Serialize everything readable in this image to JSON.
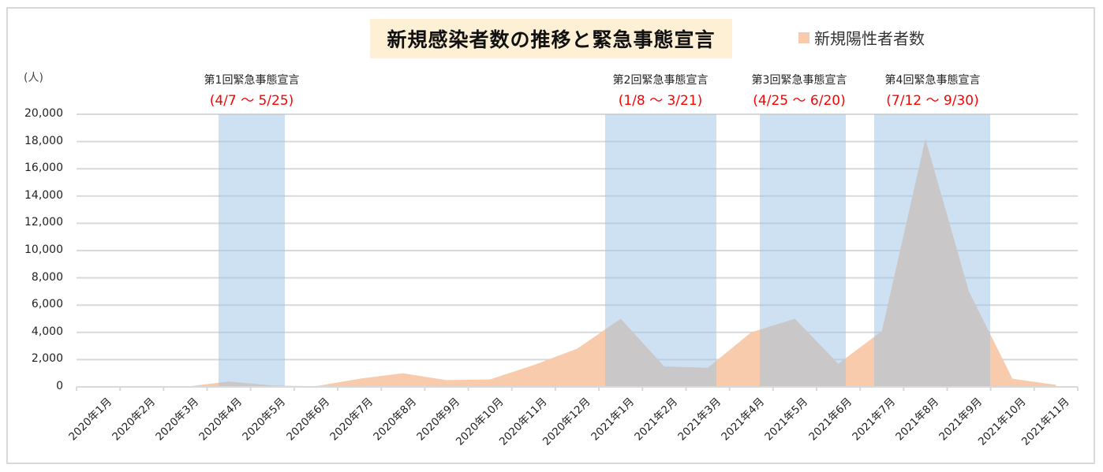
{
  "title": "新規感染者数の推移と緊急事態宣言",
  "legend": {
    "label": "新規陽性者者数",
    "color": "#f7cbab"
  },
  "y_unit": "(人)",
  "y_ticks": [
    "20,000",
    "18,000",
    "16,000",
    "14,000",
    "12,000",
    "10,000",
    "8,000",
    "6,000",
    "4,000",
    "2,000",
    "0"
  ],
  "annotations": [
    {
      "name": "第1回緊急事態宣言",
      "dates": "(4/7 〜 5/25)"
    },
    {
      "name": "第2回緊急事態宣言",
      "dates": "(1/8 〜 3/21)"
    },
    {
      "name": "第3回緊急事態宣言",
      "dates": "(4/25 〜 6/20)"
    },
    {
      "name": "第4回緊急事態宣言",
      "dates": "(7/12 〜 9/30)"
    }
  ],
  "chart_data": {
    "type": "area",
    "title": "新規感染者数の推移と緊急事態宣言",
    "xlabel": "",
    "ylabel": "(人)",
    "ylim": [
      0,
      20000
    ],
    "grid": true,
    "legend_position": "top-right",
    "categories": [
      "2020年1月",
      "2020年2月",
      "2020年3月",
      "2020年4月",
      "2020年5月",
      "2020年6月",
      "2020年7月",
      "2020年8月",
      "2020年9月",
      "2020年10月",
      "2020年11月",
      "2020年12月",
      "2021年1月",
      "2021年2月",
      "2021年3月",
      "2021年4月",
      "2021年5月",
      "2021年6月",
      "2021年7月",
      "2021年8月",
      "2021年9月",
      "2021年10月",
      "2021年11月"
    ],
    "series": [
      {
        "name": "新規陽性者者数",
        "color": "#f7cbab",
        "values": [
          0,
          0,
          10,
          400,
          100,
          50,
          600,
          1000,
          500,
          550,
          1600,
          2800,
          5000,
          1500,
          1400,
          4000,
          5000,
          1700,
          4100,
          18200,
          7000,
          600,
          150
        ]
      }
    ],
    "shaded_periods": [
      {
        "label": "第1回緊急事態宣言",
        "range": "4/7 〜 5/25",
        "color": "#bdd7ee"
      },
      {
        "label": "第2回緊急事態宣言",
        "range": "1/8 〜 3/21",
        "color": "#bdd7ee"
      },
      {
        "label": "第3回緊急事態宣言",
        "range": "4/25 〜 6/20",
        "color": "#bdd7ee"
      },
      {
        "label": "第4回緊急事態宣言",
        "range": "7/12 〜 9/30",
        "color": "#bdd7ee"
      }
    ]
  }
}
